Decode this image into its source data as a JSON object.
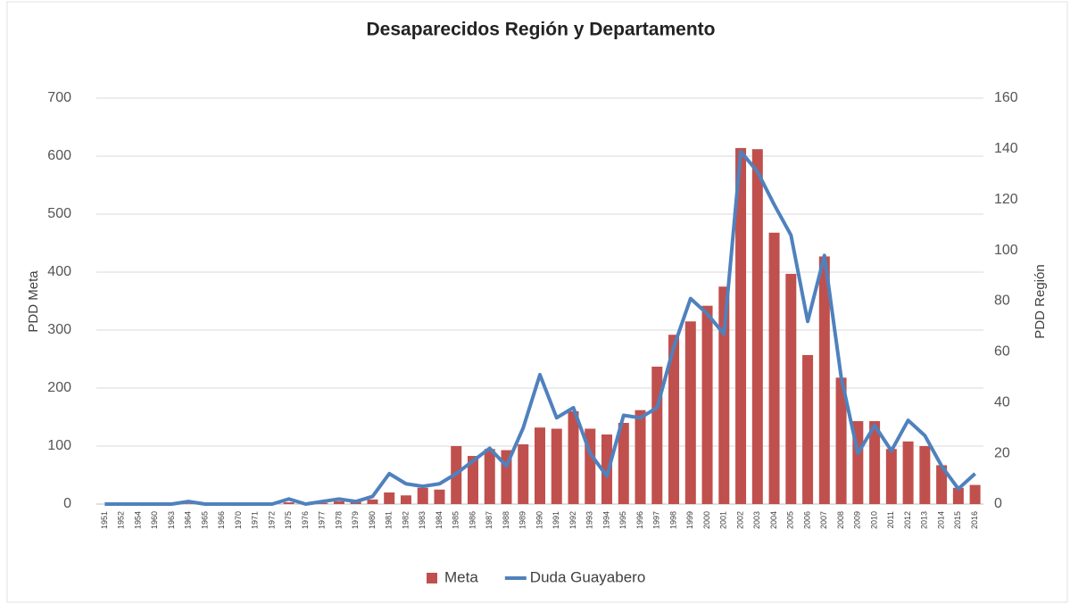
{
  "chart_data": {
    "type": "bar_line",
    "title": "Desaparecidos Región y Departamento",
    "y_label": "PDD Meta",
    "y2_label": "PDD Región",
    "categories": [
      "1951",
      "1952",
      "1954",
      "1960",
      "1963",
      "1964",
      "1965",
      "1966",
      "1970",
      "1971",
      "1972",
      "1975",
      "1976",
      "1977",
      "1978",
      "1979",
      "1980",
      "1981",
      "1982",
      "1983",
      "1984",
      "1985",
      "1986",
      "1987",
      "1988",
      "1989",
      "1990",
      "1991",
      "1992",
      "1993",
      "1994",
      "1995",
      "1996",
      "1997",
      "1998",
      "1999",
      "2000",
      "2001",
      "2002",
      "2003",
      "2004",
      "2005",
      "2006",
      "2007",
      "2008",
      "2009",
      "2010",
      "2011",
      "2012",
      "2013",
      "2014",
      "2015",
      "2016"
    ],
    "series": [
      {
        "name": "Meta",
        "type": "bar",
        "color": "#c0504d",
        "values": [
          0,
          0,
          0,
          0,
          0,
          1,
          0,
          0,
          0,
          0,
          0,
          3,
          0,
          2,
          5,
          4,
          8,
          20,
          15,
          28,
          25,
          100,
          83,
          95,
          93,
          103,
          132,
          130,
          160,
          130,
          120,
          140,
          162,
          237,
          292,
          315,
          342,
          375,
          614,
          612,
          468,
          397,
          257,
          427,
          218,
          143,
          143,
          95,
          108,
          100,
          67,
          28,
          33
        ]
      },
      {
        "name": "Duda Guayabero",
        "type": "line",
        "axis": "y2",
        "color": "#4f81bd",
        "values": [
          0,
          0,
          0,
          0,
          0,
          1,
          0,
          0,
          0,
          0,
          0,
          2,
          0,
          1,
          2,
          1,
          3,
          12,
          8,
          7,
          8,
          12,
          17,
          22,
          15,
          30,
          51,
          34,
          38,
          20,
          11,
          35,
          34,
          38,
          62,
          81,
          75,
          67,
          139,
          131,
          118,
          106,
          72,
          98,
          50,
          20,
          31,
          21,
          33,
          27,
          15,
          6,
          12
        ]
      }
    ],
    "ylim": [
      0,
      700
    ],
    "yticks": [
      0,
      100,
      200,
      300,
      400,
      500,
      600,
      700
    ],
    "y2lim": [
      0,
      160
    ],
    "y2ticks": [
      0,
      20,
      40,
      60,
      80,
      100,
      120,
      140,
      160
    ],
    "grid": true,
    "legend": "bottom"
  }
}
